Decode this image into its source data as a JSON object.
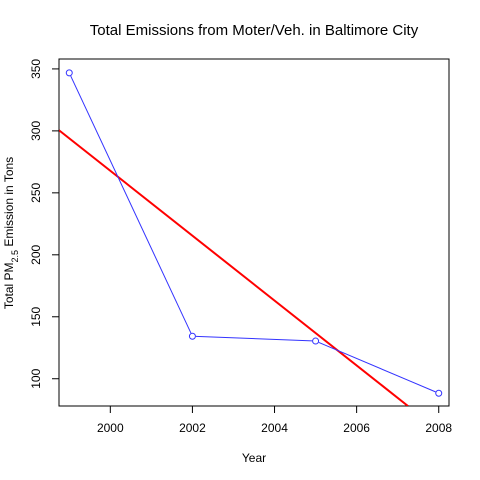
{
  "chart_data": {
    "type": "line",
    "title": "Total Emissions from Moter/Veh. in Baltimore City",
    "xlabel": "Year",
    "ylabel": {
      "prefix": "Total PM",
      "subscript": "2.5",
      "suffix": " Emission in Tons"
    },
    "xlim": [
      1998.75,
      2008.25
    ],
    "ylim": [
      78,
      358
    ],
    "x_ticks": [
      2000,
      2002,
      2004,
      2006,
      2008
    ],
    "y_ticks": [
      100,
      150,
      200,
      250,
      300,
      350
    ],
    "grid": false,
    "series": [
      {
        "x": [
          1999,
          2002,
          2005,
          2008
        ],
        "y": [
          346.8,
          134.3,
          130.4,
          88.3
        ],
        "color": "#3333ff",
        "marker": "circle"
      }
    ],
    "trend_line": {
      "x": [
        1998.75,
        2007.25
      ],
      "y": [
        300.5,
        78
      ],
      "color": "#ff0000"
    }
  }
}
